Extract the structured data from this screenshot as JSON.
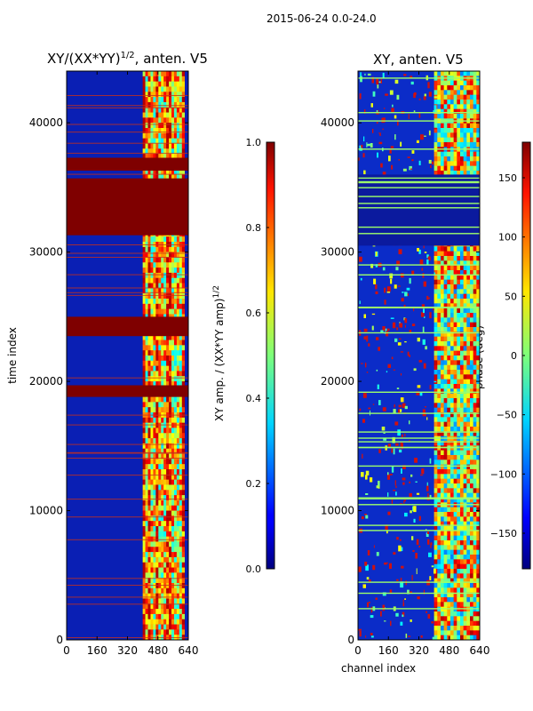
{
  "page": {
    "suptitle": "2015-06-24 0.0-24.0"
  },
  "chart_data": [
    {
      "type": "heatmap",
      "title": "XY/(XX*YY)",
      "title_exponent": "1/2",
      "title_suffix": ", anten. V5",
      "xlabel": "",
      "ylabel": "time index",
      "xlim": [
        0,
        640
      ],
      "ylim": [
        0,
        44000
      ],
      "xticks": [
        0,
        160,
        320,
        480,
        640
      ],
      "yticks": [
        0,
        10000,
        20000,
        30000,
        40000
      ],
      "colormap": "jet",
      "colorbar": {
        "label": "XY amp. / (XX*YY amp)",
        "label_exponent": "1/2",
        "range": [
          0.0,
          1.0
        ],
        "ticks": [
          "0.0",
          "0.2",
          "0.4",
          "0.6",
          "0.8",
          "1.0"
        ]
      },
      "saturated_bands": [
        [
          23500,
          25000
        ],
        [
          18800,
          19700
        ],
        [
          31300,
          35700
        ],
        [
          36300,
          37300
        ]
      ],
      "bright_channel_band": [
        400,
        620
      ]
    },
    {
      "type": "heatmap",
      "title": "XY, anten. V5",
      "xlabel": "channel index",
      "ylabel": "",
      "xlim": [
        0,
        640
      ],
      "ylim": [
        0,
        44000
      ],
      "xticks": [
        0,
        160,
        320,
        480,
        640
      ],
      "yticks": [
        0,
        10000,
        20000,
        30000,
        40000
      ],
      "colormap": "jet",
      "colorbar": {
        "label": "phase (deg)",
        "range": [
          -180,
          180
        ],
        "ticks": [
          "−150",
          "−100",
          "−50",
          "0",
          "50",
          "100",
          "150"
        ]
      },
      "dark_band": [
        30500,
        36000
      ],
      "bright_channel_band": [
        400,
        640
      ]
    }
  ]
}
